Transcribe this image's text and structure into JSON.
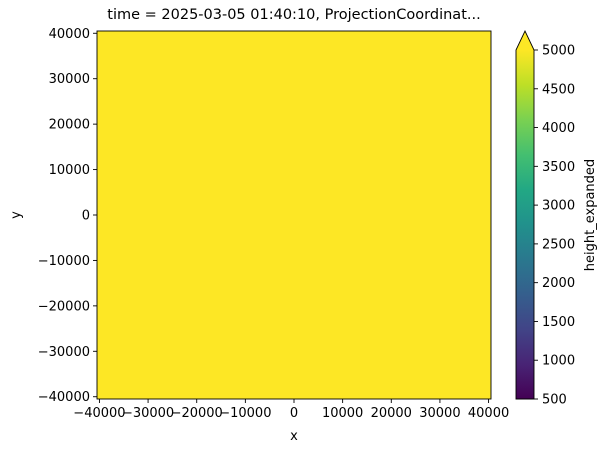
{
  "chart_data": {
    "type": "heatmap",
    "title": "time = 2025-03-05 01:40:10, ProjectionCoordinat...",
    "xlabel": "x",
    "ylabel": "y",
    "xlim": [
      -40500,
      40500
    ],
    "ylim": [
      -40500,
      40500
    ],
    "xticks": [
      -40000,
      -30000,
      -20000,
      -10000,
      0,
      10000,
      20000,
      30000,
      40000
    ],
    "xtick_labels": [
      "−40000",
      "−30000",
      "−20000",
      "−10000",
      "0",
      "10000",
      "20000",
      "30000",
      "40000"
    ],
    "yticks": [
      -40000,
      -30000,
      -20000,
      -10000,
      0,
      10000,
      20000,
      30000,
      40000
    ],
    "ytick_labels": [
      "−40000",
      "−30000",
      "−20000",
      "−10000",
      "0",
      "10000",
      "20000",
      "30000",
      "40000"
    ],
    "field_value": 5000,
    "field_color": "#fde725",
    "grid": false,
    "colorbar": {
      "label": "height_expanded",
      "colormap": "viridis",
      "range": [
        500,
        5000
      ],
      "extend": "max",
      "ticks": [
        500,
        1000,
        1500,
        2000,
        2500,
        3000,
        3500,
        4000,
        4500,
        5000
      ],
      "tick_labels": [
        "500",
        "1000",
        "1500",
        "2000",
        "2500",
        "3000",
        "3500",
        "4000",
        "4500",
        "5000"
      ]
    }
  }
}
